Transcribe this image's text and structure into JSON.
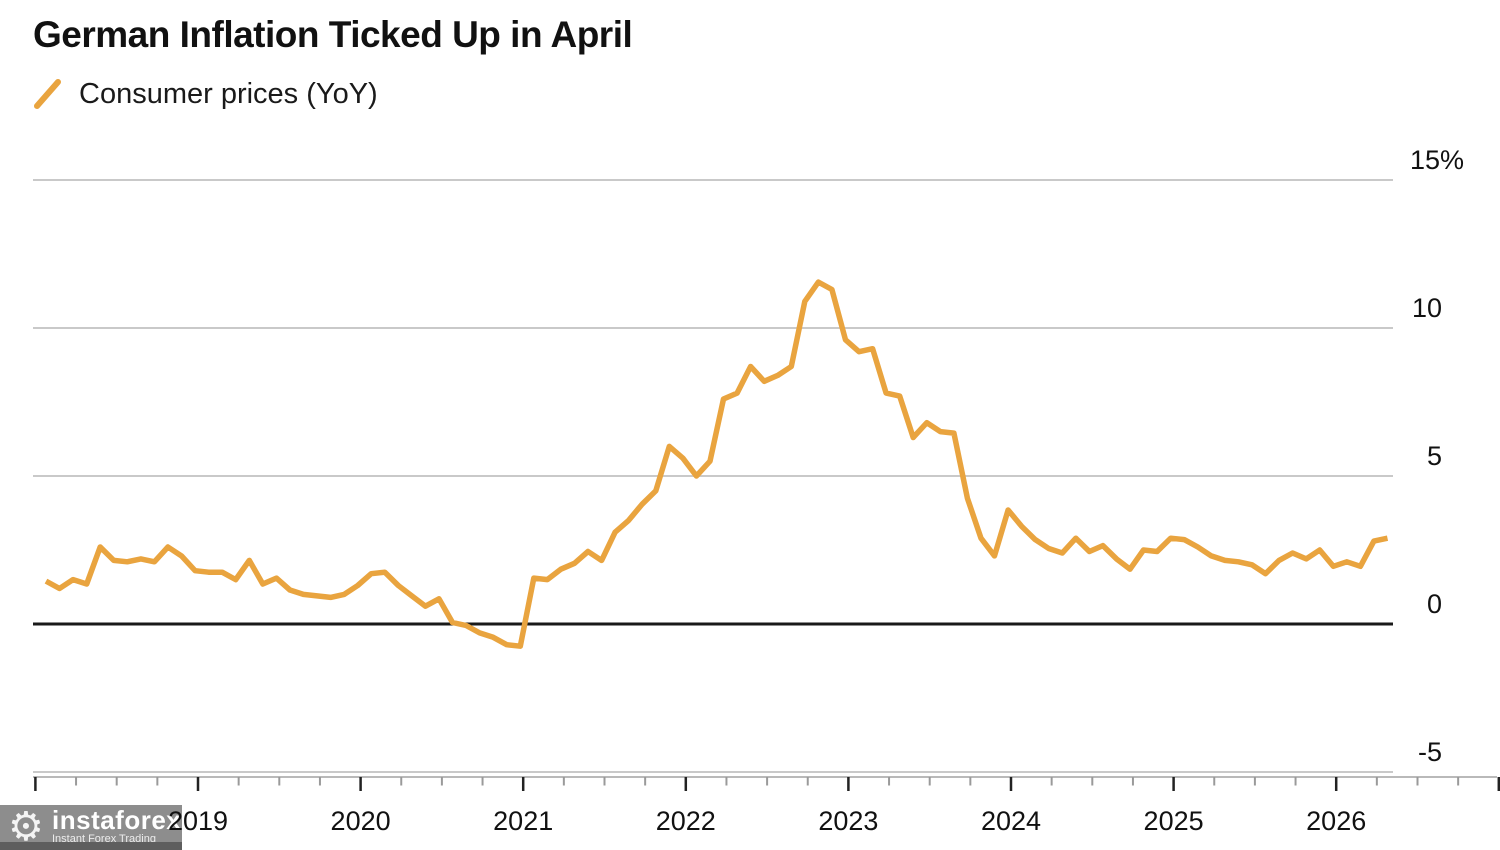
{
  "title": "German Inflation Ticked Up in April",
  "legend": {
    "label": "Consumer prices (YoY)"
  },
  "watermark": {
    "brand": "instaforex",
    "tagline": "Instant Forex Trading",
    "gear_glyph": "⚙"
  },
  "colors": {
    "line": "#E9A43F",
    "grid": "#C9C9C9",
    "zero_line": "#1A1A1A",
    "axis_line": "#B9B9B9",
    "tick_major": "#222222",
    "tick_minor": "#9A9A9A",
    "label": "#111111",
    "watermark_bg": "#8D8D8D",
    "watermark_strip": "#5E5E5E",
    "watermark_text": "#FFFFFF",
    "background": "#FFFFFF"
  },
  "chart_data": {
    "type": "line",
    "title": "German Inflation Ticked Up in April",
    "series_name": "Consumer prices (YoY)",
    "unit": "%",
    "frequency": "monthly",
    "x_start": "2018-01",
    "x_end": "2026-04",
    "grid": "horizontal-only",
    "legend_position": "top-left",
    "y_axis": {
      "side": "right",
      "ylim": [
        -5,
        15
      ],
      "ticks": [
        {
          "value": 15,
          "label": "15%"
        },
        {
          "value": 10,
          "label": "10"
        },
        {
          "value": 5,
          "label": "5"
        },
        {
          "value": 0,
          "label": "0"
        },
        {
          "value": -5,
          "label": "-5"
        }
      ]
    },
    "x_axis": {
      "tick_labels": [
        "2019",
        "2020",
        "2021",
        "2022",
        "2023",
        "2024",
        "2025",
        "2026"
      ],
      "minor_ticks_per_year": 4
    },
    "series": [
      {
        "name": "Consumer prices (YoY)",
        "start": "2018-01",
        "values": [
          1.45,
          1.2,
          1.5,
          1.35,
          2.6,
          2.15,
          2.1,
          2.2,
          2.1,
          2.6,
          2.3,
          1.8,
          1.75,
          1.75,
          1.5,
          2.15,
          1.35,
          1.55,
          1.15,
          1.0,
          0.95,
          0.9,
          1.0,
          1.3,
          1.7,
          1.75,
          1.3,
          0.95,
          0.6,
          0.85,
          0.05,
          -0.05,
          -0.3,
          -0.45,
          -0.7,
          -0.75,
          1.55,
          1.5,
          1.85,
          2.05,
          2.45,
          2.15,
          3.1,
          3.5,
          4.05,
          4.5,
          6.0,
          5.6,
          5.0,
          5.5,
          7.6,
          7.8,
          8.7,
          8.2,
          8.4,
          8.7,
          10.9,
          11.55,
          11.3,
          9.6,
          9.2,
          9.3,
          7.8,
          7.7,
          6.3,
          6.8,
          6.5,
          6.45,
          4.25,
          2.9,
          2.3,
          3.85,
          3.3,
          2.85,
          2.55,
          2.4,
          2.9,
          2.45,
          2.65,
          2.2,
          1.85,
          2.5,
          2.45,
          2.9,
          2.85,
          2.6,
          2.3,
          2.15,
          2.1,
          2.0,
          1.7,
          2.15,
          2.4,
          2.2,
          2.5,
          1.95,
          2.1,
          1.95,
          2.8,
          2.9
        ]
      }
    ]
  }
}
